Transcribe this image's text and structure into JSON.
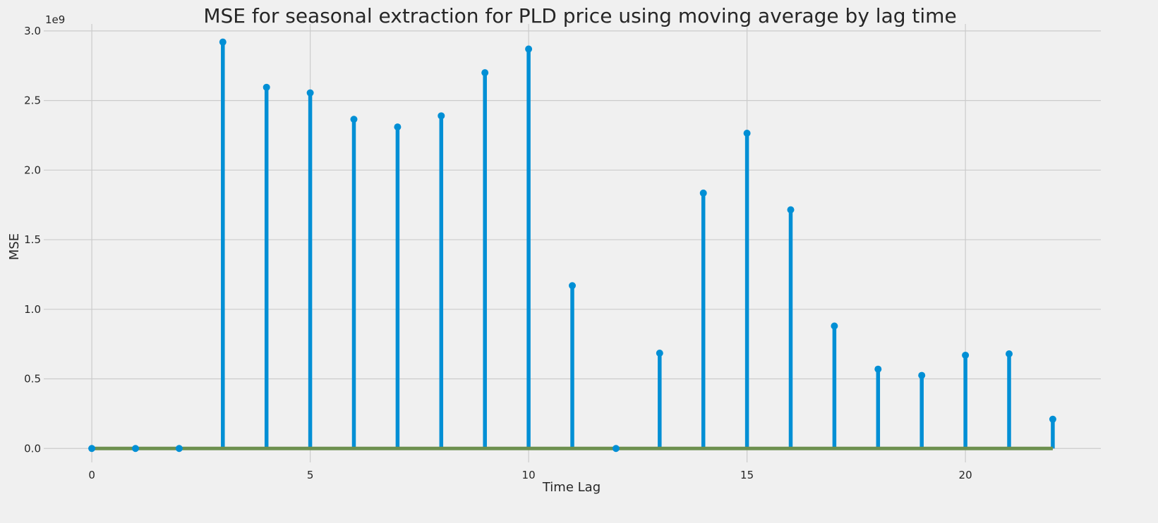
{
  "chart_data": {
    "type": "stem",
    "title": "MSE for seasonal extraction for PLD price using moving average by lag time",
    "xlabel": "Time Lag",
    "ylabel": "MSE",
    "y_offset_label": "1e9",
    "xlim": [
      -1.1,
      23.1
    ],
    "ylim": [
      -0.1,
      3.05
    ],
    "x_ticks": [
      0,
      5,
      10,
      15,
      20
    ],
    "y_ticks": [
      0.0,
      0.5,
      1.0,
      1.5,
      2.0,
      2.5,
      3.0
    ],
    "x_tick_labels": [
      "0",
      "5",
      "10",
      "15",
      "20"
    ],
    "y_tick_labels": [
      "0.0",
      "0.5",
      "1.0",
      "1.5",
      "2.0",
      "2.5",
      "3.0"
    ],
    "grid": true,
    "x": [
      0,
      1,
      2,
      3,
      4,
      5,
      6,
      7,
      8,
      9,
      10,
      11,
      12,
      13,
      14,
      15,
      16,
      17,
      18,
      19,
      20,
      21,
      22
    ],
    "values": [
      0.0,
      0.0,
      0.0,
      2.92,
      2.595,
      2.555,
      2.365,
      2.31,
      2.39,
      2.7,
      2.87,
      1.17,
      0.0,
      0.685,
      1.835,
      2.265,
      1.715,
      0.88,
      0.57,
      0.525,
      0.67,
      0.68,
      0.21
    ],
    "baseline": 0.0,
    "colors": {
      "stem": "#008fd5",
      "baseline": "#6d904f",
      "background": "#f0f0f0",
      "grid": "#cbcbcb"
    }
  }
}
